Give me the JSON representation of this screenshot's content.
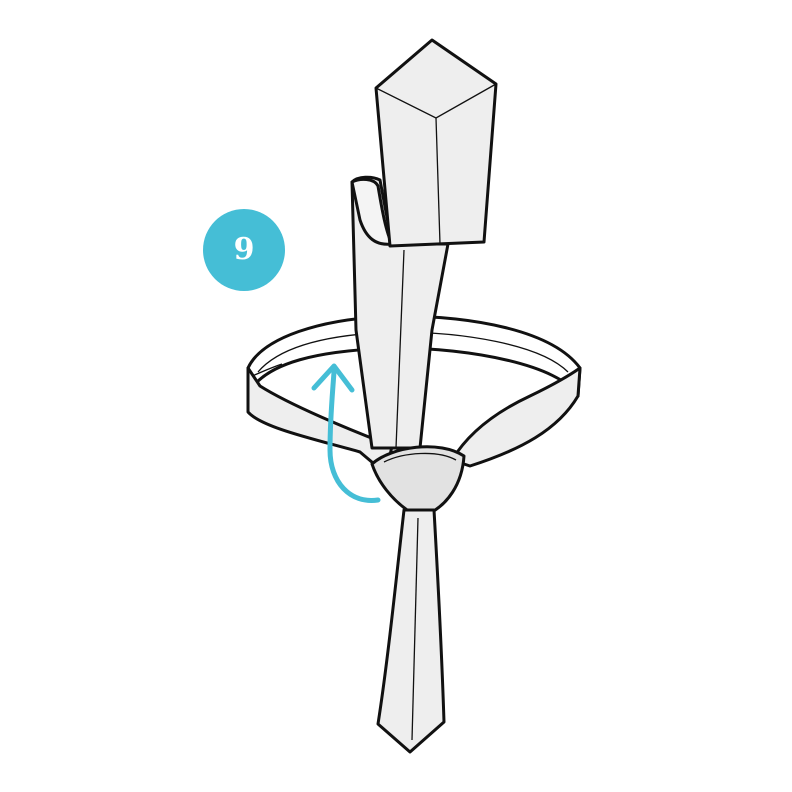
{
  "step": {
    "number": "9"
  },
  "colors": {
    "accent": "#45BED6",
    "tie_fill": "#EEEEEE",
    "tie_shade": "#DADADA",
    "outline": "#111111",
    "background": "#FFFFFF"
  },
  "icons": {
    "direction": "curved-up-arrow-icon"
  }
}
